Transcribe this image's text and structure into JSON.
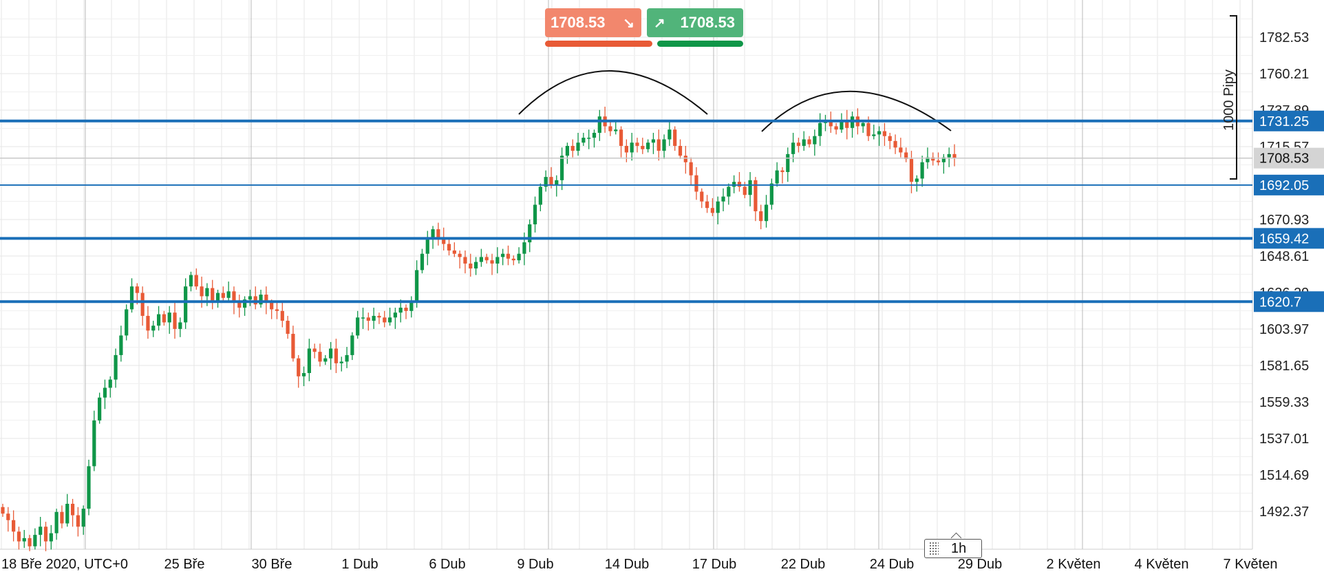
{
  "chart_data": {
    "type": "candlestick",
    "ylim": [
      1470,
      1805
    ],
    "y_ticks": [
      "1782.53",
      "1760.21",
      "1737.89",
      "1715.57",
      "1648.61",
      "1626.29",
      "1603.97",
      "1581.65",
      "1559.33",
      "1537.01",
      "1514.69",
      "1492.37"
    ],
    "x_ticks": [
      "18 Bře 2020, UTC+0",
      "25 Bře",
      "30 Bře",
      "1 Dub",
      "6 Dub",
      "9 Dub",
      "14 Dub",
      "17 Dub",
      "22 Dub",
      "24 Dub",
      "29 Dub",
      "2 Květen",
      "4 Květen",
      "7 Květen"
    ],
    "levels": [
      {
        "label": "1731.25",
        "value": 1731.25
      },
      {
        "label": "1692.05",
        "value": 1692.05
      },
      {
        "label": "1659.42",
        "value": 1659.42
      },
      {
        "label": "1620.7",
        "value": 1620.7
      }
    ],
    "current_price": {
      "label": "1708.53",
      "value": 1708.53
    },
    "measure_label": "1000 Pipy",
    "pattern_curves": [
      "left-arc",
      "right-arc"
    ],
    "grid": true,
    "colors": {
      "up": "#0f9648",
      "down": "#e85a36",
      "level": "#1a6fb8",
      "grid": "#e6e6e6",
      "grid_major": "#b8b8b8"
    },
    "candle_closes": [
      1491,
      1487,
      1480,
      1474,
      1476,
      1471,
      1478,
      1483,
      1474,
      1479,
      1492,
      1485,
      1497,
      1490,
      1483,
      1494,
      1520,
      1548,
      1562,
      1568,
      1573,
      1588,
      1600,
      1616,
      1630,
      1626,
      1612,
      1603,
      1606,
      1613,
      1608,
      1614,
      1604,
      1608,
      1630,
      1637,
      1630,
      1624,
      1629,
      1621,
      1626,
      1623,
      1627,
      1620,
      1617,
      1622,
      1624,
      1619,
      1625,
      1620,
      1616,
      1615,
      1609,
      1601,
      1586,
      1575,
      1577,
      1592,
      1590,
      1584,
      1586,
      1592,
      1583,
      1584,
      1588,
      1600,
      1611,
      1611,
      1609,
      1612,
      1611,
      1608,
      1611,
      1614,
      1617,
      1615,
      1620,
      1640,
      1650,
      1659,
      1665,
      1660,
      1656,
      1652,
      1650,
      1648,
      1644,
      1641,
      1645,
      1648,
      1646,
      1644,
      1648,
      1650,
      1647,
      1646,
      1650,
      1657,
      1668,
      1680,
      1691,
      1697,
      1692,
      1695,
      1710,
      1716,
      1713,
      1718,
      1721,
      1721,
      1724,
      1734,
      1728,
      1725,
      1726,
      1716,
      1712,
      1718,
      1716,
      1714,
      1718,
      1720,
      1713,
      1720,
      1726,
      1716,
      1710,
      1706,
      1698,
      1688,
      1682,
      1678,
      1675,
      1682,
      1685,
      1691,
      1694,
      1691,
      1686,
      1695,
      1676,
      1670,
      1680,
      1693,
      1701,
      1700,
      1711,
      1718,
      1716,
      1720,
      1717,
      1722,
      1730,
      1732,
      1728,
      1726,
      1732,
      1727,
      1734,
      1728,
      1730,
      1722,
      1723,
      1725,
      1722,
      1719,
      1715,
      1712,
      1708,
      1694,
      1696,
      1706,
      1709,
      1707,
      1706,
      1709,
      1711,
      1708.53
    ]
  }
}
